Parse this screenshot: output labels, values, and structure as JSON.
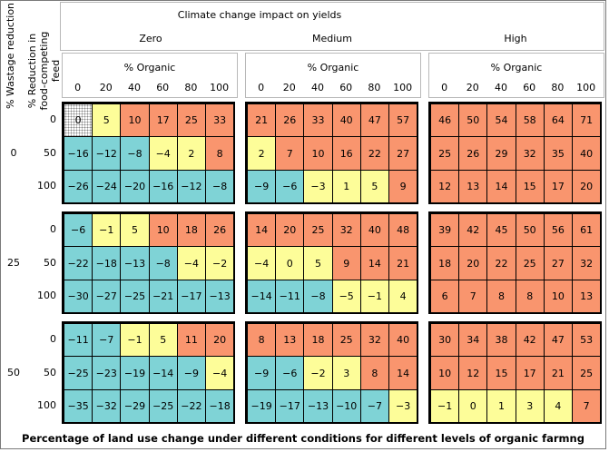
{
  "chart_data": {
    "type": "table",
    "title": "Climate change impact on yields",
    "caption": "Percentage of land use change under different conditions for different levels of organic farmng",
    "row_axis_outer": "% Wastage reduction",
    "row_axis_inner": "% Reduction in food-competing feed",
    "col_axis_inner": "% Organic",
    "climate_levels": [
      "Zero",
      "Medium",
      "High"
    ],
    "wastage_levels": [
      "0",
      "25",
      "50"
    ],
    "feed_levels": [
      "0",
      "50",
      "100"
    ],
    "organic_levels": [
      "0",
      "20",
      "40",
      "60",
      "80",
      "100"
    ],
    "colors": {
      "blue": "#7fd3d6",
      "yellow": "#fdfd99",
      "orange": "#f9956e",
      "baseline": "dotted"
    },
    "values": {
      "0": {
        "Zero": [
          [
            0,
            5,
            10,
            17,
            25,
            33
          ],
          [
            -16,
            -12,
            -8,
            -4,
            2,
            8
          ],
          [
            -26,
            -24,
            -20,
            -16,
            -12,
            -8
          ]
        ],
        "Medium": [
          [
            21,
            26,
            33,
            40,
            47,
            57
          ],
          [
            2,
            7,
            10,
            16,
            22,
            27
          ],
          [
            -9,
            -6,
            -3,
            1,
            5,
            9
          ]
        ],
        "High": [
          [
            46,
            50,
            54,
            58,
            64,
            71
          ],
          [
            25,
            26,
            29,
            32,
            35,
            40
          ],
          [
            12,
            13,
            14,
            15,
            17,
            20
          ]
        ]
      },
      "25": {
        "Zero": [
          [
            -6,
            -1,
            5,
            10,
            18,
            26
          ],
          [
            -22,
            -18,
            -13,
            -8,
            -4,
            -2
          ],
          [
            -30,
            -27,
            -25,
            -21,
            -17,
            -13
          ]
        ],
        "Medium": [
          [
            14,
            20,
            25,
            32,
            40,
            48
          ],
          [
            -4,
            0,
            5,
            9,
            14,
            21
          ],
          [
            -14,
            -11,
            -8,
            -5,
            -1,
            4
          ]
        ],
        "High": [
          [
            39,
            42,
            45,
            50,
            56,
            61
          ],
          [
            18,
            20,
            22,
            25,
            27,
            32
          ],
          [
            6,
            7,
            8,
            8,
            10,
            13
          ]
        ]
      },
      "50": {
        "Zero": [
          [
            -11,
            -7,
            -1,
            5,
            11,
            20
          ],
          [
            -25,
            -23,
            -19,
            -14,
            -9,
            -4
          ],
          [
            -35,
            -32,
            -29,
            -25,
            -22,
            -18
          ]
        ],
        "Medium": [
          [
            8,
            13,
            18,
            25,
            32,
            40
          ],
          [
            -9,
            -6,
            -2,
            3,
            8,
            14
          ],
          [
            -19,
            -17,
            -13,
            -10,
            -7,
            -3
          ]
        ],
        "High": [
          [
            30,
            34,
            38,
            42,
            47,
            53
          ],
          [
            10,
            12,
            15,
            17,
            21,
            25
          ],
          [
            -1,
            0,
            1,
            3,
            4,
            7
          ]
        ]
      }
    },
    "cell_colors": {
      "0": {
        "Zero": [
          [
            "dotted",
            "yellow",
            "orange",
            "orange",
            "orange",
            "orange"
          ],
          [
            "blue",
            "blue",
            "blue",
            "yellow",
            "yellow",
            "orange"
          ],
          [
            "blue",
            "blue",
            "blue",
            "blue",
            "blue",
            "blue"
          ]
        ],
        "Medium": [
          [
            "orange",
            "orange",
            "orange",
            "orange",
            "orange",
            "orange"
          ],
          [
            "yellow",
            "orange",
            "orange",
            "orange",
            "orange",
            "orange"
          ],
          [
            "blue",
            "blue",
            "yellow",
            "yellow",
            "yellow",
            "orange"
          ]
        ],
        "High": [
          [
            "orange",
            "orange",
            "orange",
            "orange",
            "orange",
            "orange"
          ],
          [
            "orange",
            "orange",
            "orange",
            "orange",
            "orange",
            "orange"
          ],
          [
            "orange",
            "orange",
            "orange",
            "orange",
            "orange",
            "orange"
          ]
        ]
      },
      "25": {
        "Zero": [
          [
            "blue",
            "yellow",
            "yellow",
            "orange",
            "orange",
            "orange"
          ],
          [
            "blue",
            "blue",
            "blue",
            "blue",
            "yellow",
            "yellow"
          ],
          [
            "blue",
            "blue",
            "blue",
            "blue",
            "blue",
            "blue"
          ]
        ],
        "Medium": [
          [
            "orange",
            "orange",
            "orange",
            "orange",
            "orange",
            "orange"
          ],
          [
            "yellow",
            "yellow",
            "yellow",
            "orange",
            "orange",
            "orange"
          ],
          [
            "blue",
            "blue",
            "blue",
            "yellow",
            "yellow",
            "yellow"
          ]
        ],
        "High": [
          [
            "orange",
            "orange",
            "orange",
            "orange",
            "orange",
            "orange"
          ],
          [
            "orange",
            "orange",
            "orange",
            "orange",
            "orange",
            "orange"
          ],
          [
            "orange",
            "orange",
            "orange",
            "orange",
            "orange",
            "orange"
          ]
        ]
      },
      "50": {
        "Zero": [
          [
            "blue",
            "blue",
            "yellow",
            "yellow",
            "orange",
            "orange"
          ],
          [
            "blue",
            "blue",
            "blue",
            "blue",
            "blue",
            "yellow"
          ],
          [
            "blue",
            "blue",
            "blue",
            "blue",
            "blue",
            "blue"
          ]
        ],
        "Medium": [
          [
            "orange",
            "orange",
            "orange",
            "orange",
            "orange",
            "orange"
          ],
          [
            "blue",
            "blue",
            "yellow",
            "yellow",
            "orange",
            "orange"
          ],
          [
            "blue",
            "blue",
            "blue",
            "blue",
            "blue",
            "yellow"
          ]
        ],
        "High": [
          [
            "orange",
            "orange",
            "orange",
            "orange",
            "orange",
            "orange"
          ],
          [
            "orange",
            "orange",
            "orange",
            "orange",
            "orange",
            "orange"
          ],
          [
            "yellow",
            "yellow",
            "yellow",
            "yellow",
            "yellow",
            "orange"
          ]
        ]
      }
    }
  }
}
